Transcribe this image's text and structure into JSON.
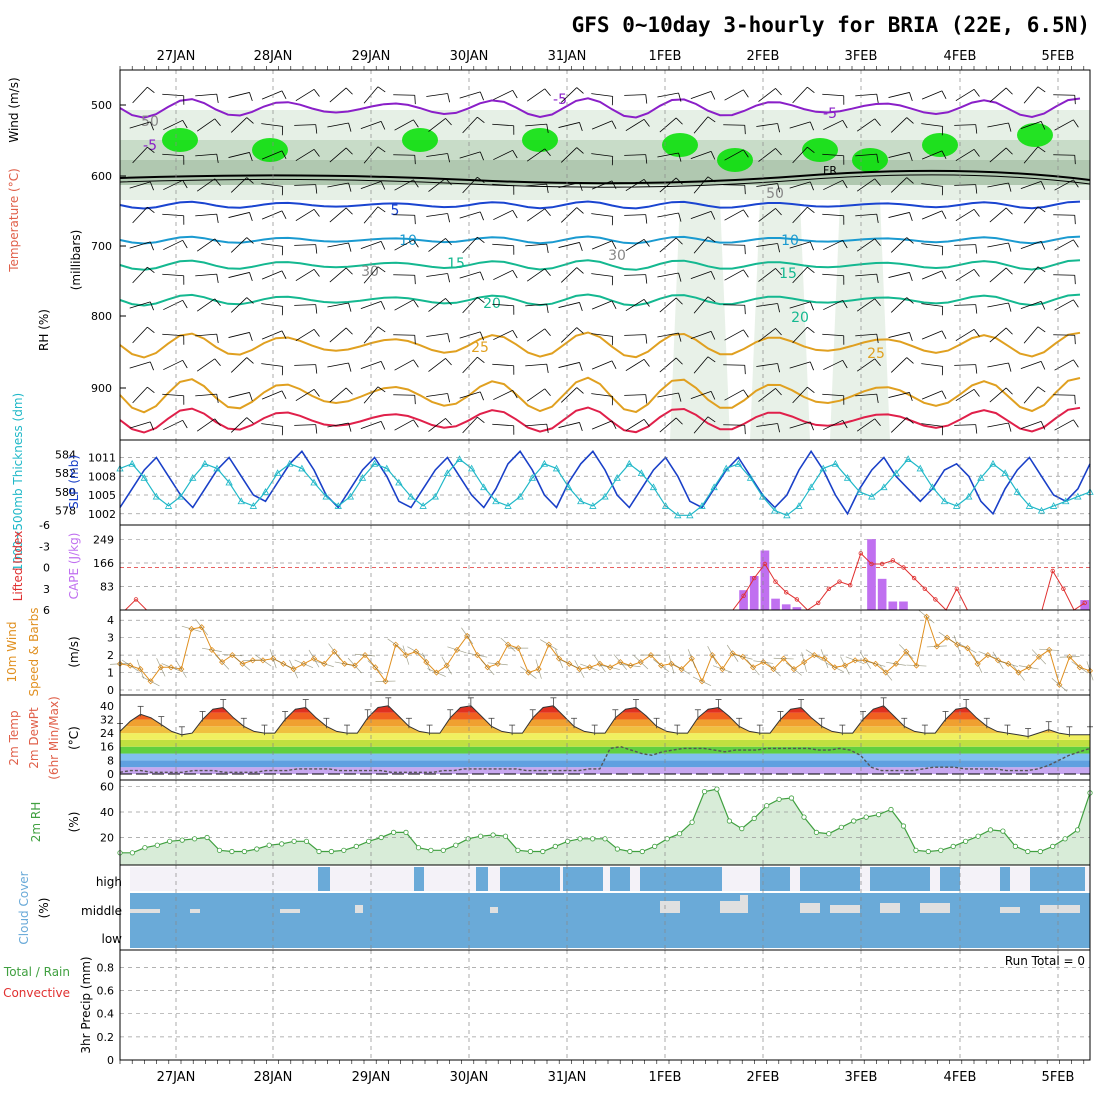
{
  "title": "GFS 0~10day 3-hourly for BRIA (22E, 6.5N)",
  "dates": [
    "27JAN",
    "28JAN",
    "29JAN",
    "30JAN",
    "31JAN",
    "1FEB",
    "2FEB",
    "3FEB",
    "4FEB",
    "5FEB"
  ],
  "colors": {
    "rh_green": "#00e000",
    "rh_light": "#c8dcc8",
    "temp_purple": "#8a1fc8",
    "temp_blue": "#1a44d0",
    "temp_cyan": "#1a9ad0",
    "temp_teal": "#14b890",
    "temp_orange": "#e0a020",
    "temp_red": "#e0204a",
    "slp": "#1a40c8",
    "thickness": "#20b8c8",
    "cape": "#c070f0",
    "lifted": "#e03030",
    "wind": "#e09020",
    "rh2m": "#40a040",
    "cloud": "#6aaad8"
  },
  "labels": {
    "upper_wind": "Wind (m/s)",
    "upper_temp": "Temperature (°C)",
    "upper_rh": "RH (%)",
    "upper_units": "(millibars)",
    "thick_label": "1000~500mb Thickness (dm)",
    "slp_label": "SLP (mb)",
    "li_label": "Lifted Index",
    "cape_label": "CAPE (J/kg)",
    "wind10_label": "10m Wind",
    "wind10_label2": "Speed & Barbs",
    "wind10_units": "(m/s)",
    "temp2m_label1": "2m Temp",
    "temp2m_label2": "2m DewPt",
    "temp2m_label3": "(6hr Min/Max)",
    "temp2m_units": "(°C)",
    "rh2m_label": "2m RH",
    "rh2m_units": "(%)",
    "cloud_label": "Cloud Cover",
    "cloud_units": "(%)",
    "cloud_high": "high",
    "cloud_middle": "middle",
    "cloud_low": "low",
    "precip_label1": "Total / Rain",
    "precip_label2": "Convective",
    "precip_units": "3hr Precip (mm)",
    "run_total": "Run Total = 0",
    "fr_label": "FR"
  },
  "chart_data": [
    {
      "type": "heatmap",
      "name": "upper-air",
      "yticks": [
        500,
        600,
        700,
        800,
        900
      ],
      "contour_labels": [
        "-5",
        "-5",
        "-5",
        "5",
        "10",
        "10",
        "15",
        "15",
        "20",
        "20",
        "25",
        "25",
        "30",
        "30",
        "50",
        "50"
      ],
      "ylabel": "millibars"
    },
    {
      "type": "line",
      "name": "slp-thickness",
      "slp_ticks": [
        1002,
        1005,
        1008,
        1011
      ],
      "thick_ticks": [
        578,
        580,
        582,
        584
      ],
      "series": [
        {
          "name": "SLP",
          "values": [
            1003,
            1006,
            1009,
            1011,
            1008,
            1005,
            1003,
            1006,
            1009,
            1011,
            1008,
            1005,
            1004,
            1007,
            1010,
            1012,
            1009,
            1005,
            1003,
            1006,
            1009,
            1011,
            1008,
            1004,
            1003,
            1006,
            1009,
            1011,
            1008,
            1005,
            1003,
            1006,
            1010,
            1012,
            1009,
            1005,
            1003,
            1007,
            1010,
            1012,
            1009,
            1005,
            1003,
            1006,
            1009,
            1011,
            1008,
            1004,
            1003,
            1006,
            1009,
            1011,
            1008,
            1005,
            1003,
            1005,
            1009,
            1012,
            1009,
            1005,
            1002,
            1006,
            1009,
            1011,
            1008,
            1006,
            1004,
            1006,
            1009,
            1010,
            1008,
            1004,
            1002,
            1006,
            1009,
            1011,
            1008,
            1005,
            1004,
            1006,
            1010
          ]
        },
        {
          "name": "Thickness",
          "values": [
            582.5,
            583,
            581.5,
            579.5,
            578.5,
            579.5,
            581.5,
            583,
            582.5,
            581,
            579,
            578.5,
            580,
            582,
            583,
            582.5,
            581,
            579.5,
            578.5,
            579.5,
            581.5,
            583,
            582.5,
            581,
            579.5,
            578.5,
            579.5,
            582,
            583.5,
            582.5,
            580.5,
            579,
            578.5,
            579.5,
            581.5,
            583,
            582.5,
            580.5,
            579,
            578.5,
            579.5,
            581.5,
            583,
            582,
            580.5,
            578.5,
            577.5,
            577.5,
            578.5,
            580.5,
            582.5,
            583,
            581.5,
            579.5,
            578,
            577.5,
            578.5,
            580.5,
            582.5,
            583,
            581.5,
            580,
            579.5,
            580.5,
            582,
            583.5,
            582.5,
            580.5,
            579,
            578.5,
            579.5,
            581.5,
            583,
            582,
            580,
            578.5,
            578,
            578.5,
            579,
            579.5,
            580
          ]
        }
      ]
    },
    {
      "type": "bar",
      "name": "cape-li",
      "li_ticks": [
        6,
        3,
        0,
        -3,
        -6
      ],
      "cape_ticks": [
        83,
        166,
        249
      ],
      "series": [
        {
          "name": "CAPE",
          "values": [
            0,
            0,
            0,
            0,
            0,
            0,
            0,
            0,
            0,
            0,
            0,
            0,
            0,
            0,
            0,
            0,
            0,
            0,
            0,
            0,
            0,
            0,
            0,
            0,
            0,
            0,
            0,
            0,
            0,
            0,
            0,
            0,
            0,
            0,
            0,
            0,
            0,
            0,
            0,
            0,
            0,
            0,
            0,
            0,
            0,
            0,
            0,
            0,
            0,
            0,
            0,
            0,
            0,
            0,
            0,
            0,
            0,
            0,
            70,
            120,
            210,
            40,
            20,
            10,
            0,
            0,
            0,
            0,
            0,
            0,
            250,
            110,
            30,
            30,
            0,
            0,
            0,
            0,
            0,
            0,
            0,
            0,
            0,
            0,
            0,
            0,
            0,
            0,
            0,
            0,
            35
          ]
        },
        {
          "name": "Lifted Index",
          "values": [
            6,
            4.5,
            6,
            6,
            6,
            6,
            6,
            6,
            6,
            6,
            6,
            6,
            6,
            6,
            6,
            6,
            6,
            6,
            6,
            6,
            6,
            6,
            6,
            6,
            6,
            6,
            6,
            6,
            6,
            6,
            6,
            6,
            6,
            6,
            6,
            6,
            6,
            6,
            6,
            6,
            6,
            6,
            6,
            6,
            6,
            6,
            6,
            6,
            6,
            6,
            6,
            6,
            6,
            6,
            6,
            6,
            6,
            6,
            4,
            1.5,
            -0.5,
            2,
            3.5,
            4.5,
            6,
            5,
            3,
            2,
            2.5,
            -2,
            -0.5,
            -0.5,
            -1,
            0,
            1.5,
            3,
            4.5,
            6,
            3,
            6,
            6,
            6,
            6,
            6,
            6,
            6,
            6,
            0.5,
            3,
            6,
            5
          ]
        }
      ]
    },
    {
      "type": "line",
      "name": "10m-wind",
      "yticks": [
        0,
        1,
        2,
        3,
        4
      ],
      "series": [
        {
          "name": "Speed",
          "values": [
            1.5,
            1.4,
            1.2,
            0.5,
            1.3,
            1.3,
            1.2,
            3.5,
            3.6,
            2.3,
            1.6,
            2,
            1.5,
            1.7,
            1.7,
            1.8,
            1.5,
            1.2,
            1.5,
            1.8,
            1.5,
            2.2,
            1.5,
            1.4,
            2,
            1.3,
            0.5,
            2.6,
            2,
            2.2,
            1.6,
            1,
            1.4,
            2.3,
            3.1,
            2,
            1.3,
            1.5,
            2.6,
            2.4,
            1,
            1.2,
            2.6,
            1.8,
            1.5,
            1.2,
            1.3,
            1.5,
            1.3,
            1.6,
            1.4,
            1.6,
            2,
            1.4,
            1.5,
            1.2,
            1.8,
            0.5,
            2,
            1.2,
            2.1,
            1.9,
            1.3,
            1.6,
            1.2,
            1.8,
            1.2,
            1.6,
            2,
            1.8,
            1.3,
            1.4,
            1.7,
            1.7,
            1.5,
            1,
            1.5,
            2.2,
            1.4,
            4.2,
            2.5,
            3,
            2.6,
            2.4,
            1.5,
            2,
            1.7,
            1.5,
            1,
            1.3,
            1.9,
            2.3,
            0.3,
            1.9,
            1.3,
            1.1
          ]
        }
      ]
    },
    {
      "type": "area",
      "name": "2m-temp",
      "yticks": [
        0,
        8,
        16,
        24,
        32,
        40
      ],
      "series": [
        {
          "name": "Temp",
          "values": [
            25,
            31,
            35,
            33,
            29,
            25,
            23,
            24,
            32,
            38,
            39,
            33,
            28,
            25,
            24,
            24,
            32,
            38,
            39,
            33,
            28,
            25,
            24,
            24,
            33,
            39,
            40,
            34,
            28,
            25,
            24,
            24,
            33,
            39,
            40,
            34,
            28,
            25,
            24,
            24,
            33,
            39,
            40,
            34,
            28,
            25,
            24,
            24,
            33,
            38,
            39,
            34,
            28,
            25,
            24,
            24,
            33,
            38,
            39,
            34,
            28,
            25,
            24,
            24,
            32,
            38,
            39,
            33,
            28,
            25,
            24,
            24,
            32,
            38,
            40,
            34,
            28,
            25,
            24,
            24,
            32,
            38,
            39,
            33,
            28,
            25,
            24,
            23,
            22,
            24,
            26,
            24,
            23,
            23,
            23
          ]
        },
        {
          "name": "DewPt",
          "values": [
            1,
            2,
            2,
            1,
            1,
            1,
            1,
            2,
            2,
            2,
            1,
            1,
            1,
            1,
            2,
            2,
            2,
            3,
            3,
            3,
            3,
            2,
            2,
            2,
            2,
            2,
            1,
            1,
            1,
            1,
            1,
            2,
            2,
            3,
            3,
            3,
            3,
            3,
            3,
            2,
            2,
            2,
            2,
            2,
            2,
            3,
            3,
            15,
            16,
            14,
            12,
            11,
            13,
            14,
            15,
            15,
            15,
            14,
            13,
            14,
            14,
            14,
            15,
            15,
            15,
            15,
            15,
            14,
            14,
            15,
            14,
            11,
            4,
            2,
            2,
            2,
            2,
            3,
            4,
            4,
            4,
            3,
            3,
            3,
            3,
            2,
            2,
            2,
            3,
            5,
            8,
            11,
            13,
            15
          ]
        }
      ]
    },
    {
      "type": "area",
      "name": "2m-rh",
      "yticks": [
        20,
        40,
        60
      ],
      "series": [
        {
          "name": "RH",
          "values": [
            8,
            8,
            12,
            14,
            17,
            18,
            19,
            20,
            10,
            9,
            9,
            11,
            14,
            15,
            17,
            17,
            9,
            9,
            10,
            13,
            17,
            20,
            24,
            24,
            12,
            10,
            10,
            14,
            19,
            21,
            22,
            21,
            10,
            9,
            9,
            13,
            17,
            19,
            19,
            19,
            11,
            9,
            9,
            13,
            19,
            23,
            32,
            56,
            58,
            33,
            27,
            35,
            45,
            50,
            51,
            36,
            24,
            23,
            28,
            33,
            36,
            38,
            42,
            29,
            10,
            9,
            10,
            13,
            17,
            21,
            26,
            25,
            13,
            9,
            9,
            13,
            19,
            26,
            55
          ]
        }
      ]
    },
    {
      "type": "heatmap",
      "name": "cloud-cover",
      "categories": [
        "high",
        "middle",
        "low"
      ]
    },
    {
      "type": "bar",
      "name": "precip",
      "yticks": [
        0,
        0.2,
        0.4,
        0.6,
        0.8
      ],
      "values": []
    }
  ]
}
